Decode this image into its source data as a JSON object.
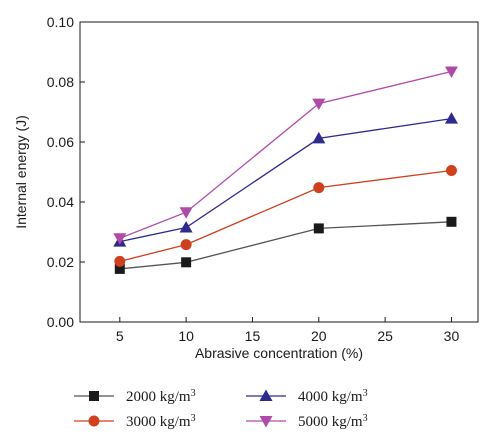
{
  "chart_data": {
    "type": "line",
    "title": "",
    "xlabel": "Abrasive concentration (%)",
    "ylabel": "Internal energy (J)",
    "x": [
      5,
      10,
      20,
      30
    ],
    "xlim": [
      2,
      32
    ],
    "ylim": [
      0.0,
      0.1
    ],
    "xticks": [
      "5",
      "10",
      "15",
      "20",
      "25",
      "30"
    ],
    "yticks": [
      "0.00",
      "0.02",
      "0.04",
      "0.06",
      "0.08",
      "0.10"
    ],
    "grid": false,
    "legend_placement": "bottom",
    "series": [
      {
        "name": "2000 kg/m",
        "unit_superscript": "3",
        "marker": "square",
        "line_color": "#555555",
        "marker_color": "#1a1a1a",
        "values": [
          0.0177,
          0.0199,
          0.0312,
          0.0334
        ]
      },
      {
        "name": "3000 kg/m",
        "unit_superscript": "3",
        "marker": "circle",
        "line_color": "#d0401e",
        "marker_color": "#d0401e",
        "values": [
          0.0202,
          0.0258,
          0.0448,
          0.0505
        ]
      },
      {
        "name": "4000 kg/m",
        "unit_superscript": "3",
        "marker": "triangle-up",
        "line_color": "#2e2a8e",
        "marker_color": "#2e2a8e",
        "values": [
          0.0268,
          0.0315,
          0.0612,
          0.0678
        ]
      },
      {
        "name": "5000 kg/m",
        "unit_superscript": "3",
        "marker": "triangle-down",
        "line_color": "#b04aa8",
        "marker_color": "#b04aa8",
        "values": [
          0.0279,
          0.0366,
          0.0728,
          0.0835
        ]
      }
    ]
  }
}
